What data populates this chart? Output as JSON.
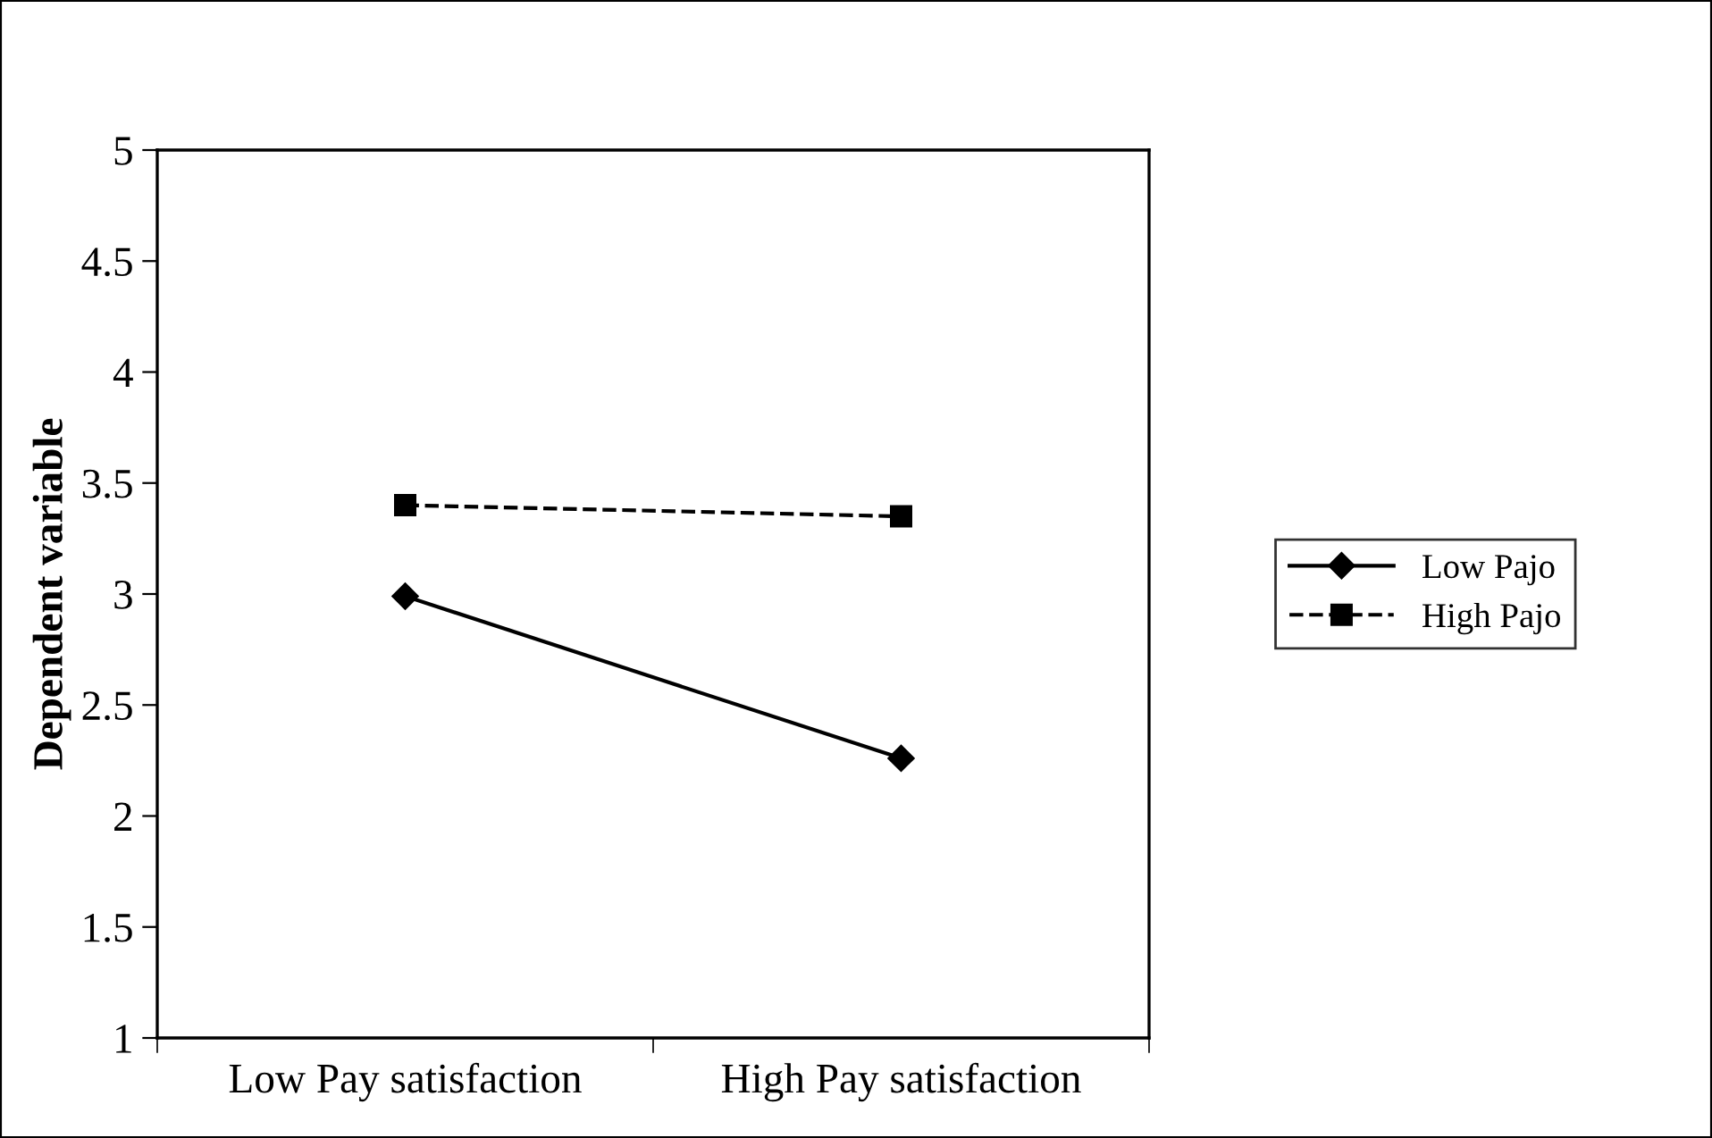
{
  "chart_data": {
    "type": "line",
    "ylabel": "Dependent variable",
    "categories": [
      "Low Pay satisfaction",
      "High Pay satisfaction"
    ],
    "series": [
      {
        "name": "Low Pajo",
        "color": "#000000",
        "values": [
          2.99,
          2.26
        ],
        "marker": "diamond",
        "line_style": "solid"
      },
      {
        "name": "High Pajo",
        "color": "#000000",
        "values": [
          3.4,
          3.35
        ],
        "marker": "square",
        "line_style": "dashed"
      }
    ],
    "ylim": [
      1,
      5
    ],
    "yticks": [
      1,
      1.5,
      2,
      2.5,
      3,
      3.5,
      4,
      4.5,
      5
    ],
    "grid": false,
    "legend": "right"
  }
}
